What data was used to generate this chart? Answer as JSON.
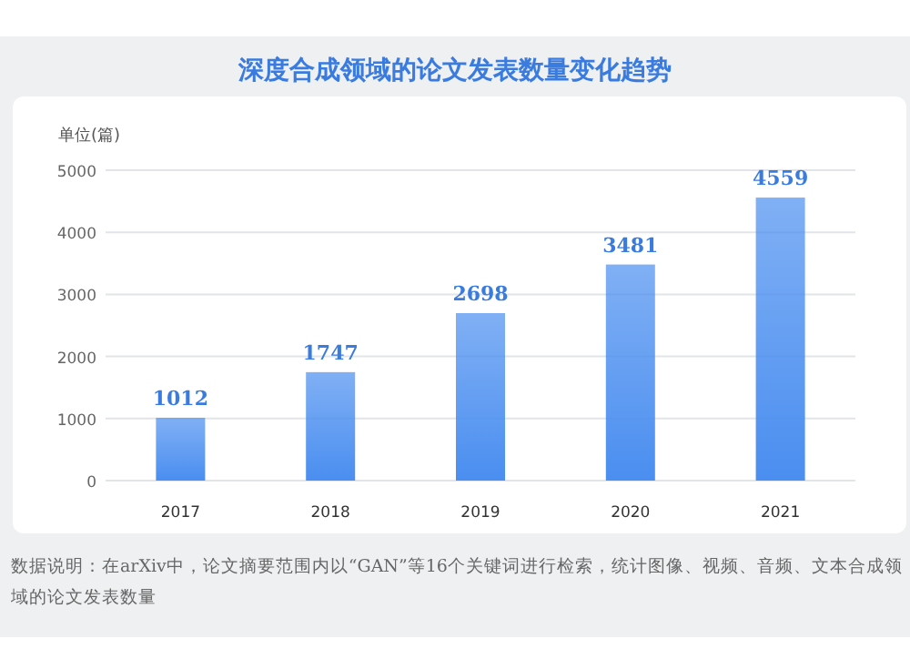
{
  "chart_data": {
    "type": "bar",
    "title": "深度合成领域的论文发表数量变化趋势",
    "ylabel": "单位(篇)",
    "categories": [
      "2017",
      "2018",
      "2019",
      "2020",
      "2021"
    ],
    "values": [
      1012,
      1747,
      2698,
      3481,
      4559
    ],
    "color": "#4a8ef0",
    "ylim": [
      0,
      5000
    ],
    "yticks": [
      0,
      1000,
      2000,
      3000,
      4000,
      5000
    ],
    "grid": "y",
    "data_labels": true,
    "annotations": [
      "数据说明：在arXiv中，论文摘要范围内以“GAN”等16个关键词进行检索，统计图像、视频、音频、文本合成领域的论文发表数量"
    ]
  }
}
